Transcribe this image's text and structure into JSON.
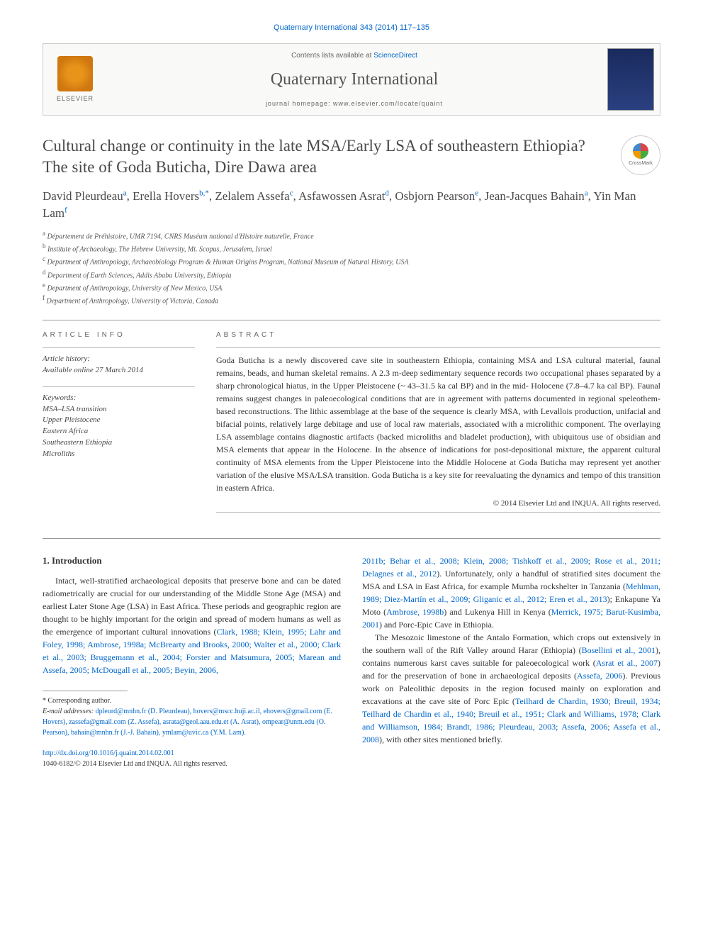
{
  "journal_ref": "Quaternary International 343 (2014) 117–135",
  "masthead": {
    "contents_prefix": "Contents lists available at ",
    "contents_link": "ScienceDirect",
    "journal_name": "Quaternary International",
    "homepage_prefix": "journal homepage: ",
    "homepage_url": "www.elsevier.com/locate/quaint",
    "publisher_label": "ELSEVIER"
  },
  "crossmark_label": "CrossMark",
  "title": "Cultural change or continuity in the late MSA/Early LSA of southeastern Ethiopia? The site of Goda Buticha, Dire Dawa area",
  "authors_html": "David Pleurdeau<sup>a</sup>, Erella Hovers<sup>b,*</sup>, Zelalem Assefa<sup>c</sup>, Asfawossen Asrat<sup>d</sup>, Osbjorn Pearson<sup>e</sup>, Jean-Jacques Bahain<sup>a</sup>, Yin Man Lam<sup>f</sup>",
  "affiliations": [
    "a Département de Préhistoire, UMR 7194, CNRS Muséum national d'Histoire naturelle, France",
    "b Institute of Archaeology, The Hebrew University, Mt. Scopus, Jerusalem, Israel",
    "c Department of Anthropology, Archaeobiology Program & Human Origins Program, National Museum of Natural History, USA",
    "d Department of Earth Sciences, Addis Ababa University, Ethiopia",
    "e Department of Anthropology, University of New Mexico, USA",
    "f Department of Anthropology, University of Victoria, Canada"
  ],
  "article_info": {
    "label": "ARTICLE INFO",
    "history_hdr": "Article history:",
    "history_line": "Available online 27 March 2014",
    "keywords_hdr": "Keywords:",
    "keywords": [
      "MSA–LSA transition",
      "Upper Pleistocene",
      "Eastern Africa",
      "Southeastern Ethiopia",
      "Microliths"
    ]
  },
  "abstract": {
    "label": "ABSTRACT",
    "text": "Goda Buticha is a newly discovered cave site in southeastern Ethiopia, containing MSA and LSA cultural material, faunal remains, beads, and human skeletal remains. A 2.3 m-deep sedimentary sequence records two occupational phases separated by a sharp chronological hiatus, in the Upper Pleistocene (~ 43–31.5 ka cal BP) and in the mid- Holocene (7.8–4.7 ka cal BP). Faunal remains suggest changes in paleoecological conditions that are in agreement with patterns documented in regional speleothem-based reconstructions. The lithic assemblage at the base of the sequence is clearly MSA, with Levallois production, unifacial and bifacial points, relatively large debitage and use of local raw materials, associated with a microlithic component. The overlaying LSA assemblage contains diagnostic artifacts (backed microliths and bladelet production), with ubiquitous use of obsidian and MSA elements that appear in the Holocene. In the absence of indications for post-depositional mixture, the apparent cultural continuity of MSA elements from the Upper Pleistocene into the Middle Holocene at Goda Buticha may represent yet another variation of the elusive MSA/LSA transition. Goda Buticha is a key site for reevaluating the dynamics and tempo of this transition in eastern Africa.",
    "copyright": "© 2014 Elsevier Ltd and INQUA. All rights reserved."
  },
  "body": {
    "section_heading": "1. Introduction",
    "left_para_plain": "Intact, well-stratified archaeological deposits that preserve bone and can be dated radiometrically are crucial for our understanding of the Middle Stone Age (MSA) and earliest Later Stone Age (LSA) in East Africa. These periods and geographic region are thought to be highly important for the origin and spread of modern humans as well as the emergence of important cultural innovations (",
    "left_cites": "Clark, 1988; Klein, 1995; Lahr and Foley, 1998; Ambrose, 1998a; McBrearty and Brooks, 2000; Walter et al., 2000; Clark et al., 2003; Bruggemann et al., 2004; Forster and Matsumura, 2005; Marean and Assefa, 2005; McDougall et al., 2005; Beyin, 2006,",
    "right_para1_cites": "2011b; Behar et al., 2008; Klein, 2008; Tishkoff et al., 2009; Rose et al., 2011; Delagnes et al., 2012",
    "right_para1_tail": "). Unfortunately, only a handful of stratified sites document the MSA and LSA in East Africa, for example Mumba rockshelter in Tanzania (",
    "right_para1_cites2": "Mehlman, 1989; Diez-Martín et al., 2009; Gliganic et al., 2012; Eren et al., 2013",
    "right_para1_mid": "); Enkapune Ya Moto (",
    "right_para1_cite3": "Ambrose, 1998b",
    "right_para1_mid2": ") and Lukenya Hill in Kenya (",
    "right_para1_cite4": "Merrick, 1975; Barut-Kusimba, 2001",
    "right_para1_tail2": ") and Porc-Epic Cave in Ethiopia.",
    "right_para2_a": "The Mesozoic limestone of the Antalo Formation, which crops out extensively in the southern wall of the Rift Valley around Harar (Ethiopia) (",
    "right_para2_c1": "Bosellini et al., 2001",
    "right_para2_b": "), contains numerous karst caves suitable for paleoecological work (",
    "right_para2_c2": "Asrat et al., 2007",
    "right_para2_c": ") and for the preservation of bone in archaeological deposits (",
    "right_para2_c3": "Assefa, 2006",
    "right_para2_d": "). Previous work on Paleolithic deposits in the region focused mainly on exploration and excavations at the cave site of Porc Epic (",
    "right_para2_c4": "Teilhard de Chardin, 1930; Breuil, 1934; Teilhard de Chardin et al., 1940; Breuil et al., 1951; Clark and Williams, 1978; Clark and Williamson, 1984; Brandt, 1986; Pleurdeau, 2003; Assefa, 2006; Assefa et al., 2008",
    "right_para2_e": "), with other sites mentioned briefly."
  },
  "footnotes": {
    "corresponding": "* Corresponding author.",
    "emails_label": "E-mail addresses:",
    "emails": "dpleurd@mnhn.fr (D. Pleurdeau), hovers@mscc.huji.ac.il, ehovers@gmail.com (E. Hovers), zassefa@gmail.com (Z. Assefa), asrata@geol.aau.edu.et (A. Asrat), ompear@unm.edu (O. Pearson), bahain@mnhn.fr (J.-J. Bahain), ymlam@uvic.ca (Y.M. Lam)."
  },
  "doi": {
    "url": "http://dx.doi.org/10.1016/j.quaint.2014.02.001",
    "issn_line": "1040-6182/© 2014 Elsevier Ltd and INQUA. All rights reserved."
  }
}
